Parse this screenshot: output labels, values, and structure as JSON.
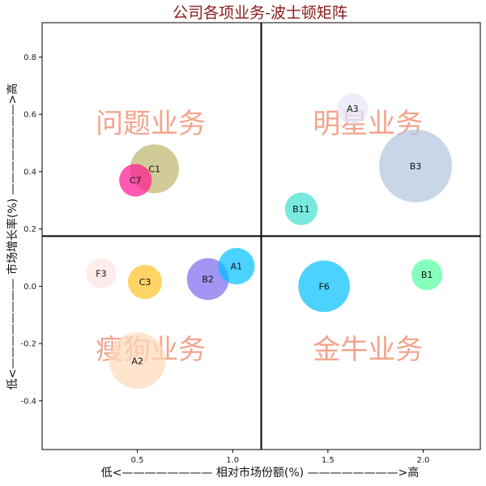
{
  "chart_data": {
    "type": "scatter",
    "title": "公司各项业务-波士顿矩阵",
    "xlabel": "低<———————— 相对市场份额(%) ————————>高",
    "ylabel": "低<———————— 市场增长率(%) ————————>高",
    "xlim": [
      0.0,
      2.3
    ],
    "ylim": [
      -0.57,
      0.92
    ],
    "x_ticks": [
      "0.5",
      "1.0",
      "1.5",
      "2.0"
    ],
    "y_ticks": [
      "-0.4",
      "-0.2",
      "0.0",
      "0.2",
      "0.4",
      "0.6",
      "0.8"
    ],
    "x_tick_values": [
      0.5,
      1.0,
      1.5,
      2.0
    ],
    "y_tick_values": [
      -0.4,
      -0.2,
      0.0,
      0.2,
      0.4,
      0.6,
      0.8
    ],
    "divider_x": 1.15,
    "divider_y": 0.175,
    "grid": false,
    "quadrants": [
      {
        "label": "问题业务",
        "x": 0.57,
        "y": 0.57
      },
      {
        "label": "明星业务",
        "x": 1.71,
        "y": 0.57
      },
      {
        "label": "瘦狗业务",
        "x": 0.57,
        "y": -0.22
      },
      {
        "label": "金牛业务",
        "x": 1.71,
        "y": -0.22
      }
    ],
    "points": [
      {
        "label": "A3",
        "x": 1.63,
        "y": 0.62,
        "size": 0.18,
        "color": "#e6e6fa"
      },
      {
        "label": "B3",
        "x": 1.96,
        "y": 0.42,
        "size": 1.0,
        "color": "#b0c4de"
      },
      {
        "label": "B11",
        "x": 1.36,
        "y": 0.27,
        "size": 0.2,
        "color": "#40e0d0"
      },
      {
        "label": "C1",
        "x": 0.59,
        "y": 0.41,
        "size": 0.45,
        "color": "#bdb76b"
      },
      {
        "label": "C7",
        "x": 0.49,
        "y": 0.37,
        "size": 0.2,
        "color": "#ff1493"
      },
      {
        "label": "F3",
        "x": 0.31,
        "y": 0.045,
        "size": 0.17,
        "color": "#ffe4e1"
      },
      {
        "label": "C3",
        "x": 0.54,
        "y": 0.015,
        "size": 0.22,
        "color": "#ffc125"
      },
      {
        "label": "B2",
        "x": 0.87,
        "y": 0.025,
        "size": 0.33,
        "color": "#7b68ee"
      },
      {
        "label": "A1",
        "x": 1.02,
        "y": 0.07,
        "size": 0.25,
        "color": "#00bfff"
      },
      {
        "label": "F6",
        "x": 1.48,
        "y": 0.0,
        "size": 0.5,
        "color": "#00bfff"
      },
      {
        "label": "B1",
        "x": 2.02,
        "y": 0.04,
        "size": 0.18,
        "color": "#54ff9f"
      },
      {
        "label": "A2",
        "x": 0.5,
        "y": -0.26,
        "size": 0.6,
        "color": "#ffdab9"
      }
    ]
  }
}
